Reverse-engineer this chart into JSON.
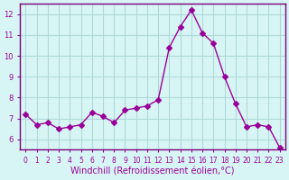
{
  "x": [
    0,
    1,
    2,
    3,
    4,
    5,
    6,
    7,
    8,
    9,
    10,
    11,
    12,
    13,
    14,
    15,
    16,
    17,
    18,
    19,
    20,
    21,
    22,
    23
  ],
  "y": [
    7.2,
    6.7,
    6.8,
    6.5,
    6.6,
    6.7,
    7.3,
    7.1,
    6.8,
    7.4,
    7.5,
    7.6,
    7.9,
    10.4,
    11.4,
    12.2,
    11.1,
    10.6,
    9.0,
    7.7,
    6.6,
    6.7,
    6.6,
    5.6
  ],
  "line_color": "#990099",
  "marker": "D",
  "marker_size": 3,
  "bg_color": "#d8f5f5",
  "grid_color": "#b0d8d8",
  "spine_color": "#7a007a",
  "xlabel": "Windchill (Refroidissement éolien,°C)",
  "xlabel_color": "#990099",
  "ylabel_ticks": [
    6,
    7,
    8,
    9,
    10,
    11,
    12
  ],
  "xtick_labels": [
    "0",
    "1",
    "2",
    "3",
    "4",
    "5",
    "6",
    "7",
    "8",
    "9",
    "10",
    "11",
    "12",
    "13",
    "14",
    "15",
    "16",
    "17",
    "18",
    "19",
    "20",
    "21",
    "22",
    "23"
  ],
  "ylim": [
    5.5,
    12.5
  ],
  "xlim": [
    -0.5,
    23.5
  ],
  "tick_color": "#990099",
  "label_fontsize": 7,
  "tick_fontsize": 6.0
}
